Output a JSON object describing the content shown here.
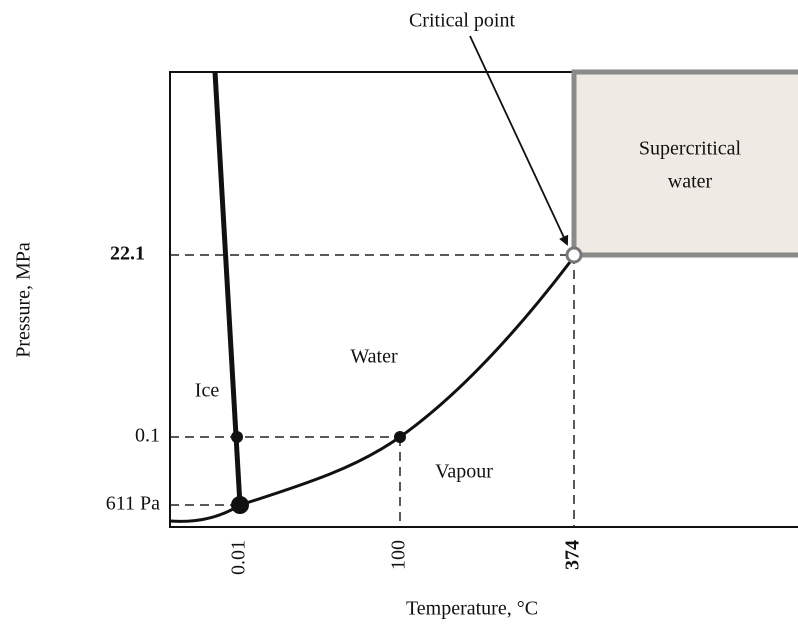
{
  "annotation": "Critical point",
  "regions": {
    "ice": "Ice",
    "water": "Water",
    "vapour": "Vapour",
    "supercritical": [
      "Supercritical",
      "water"
    ]
  },
  "axes": {
    "y_label": "Pressure, MPa",
    "x_label": "Temperature, °C",
    "y_ticks": [
      "22.1",
      "0.1",
      "611 Pa"
    ],
    "x_ticks": [
      "0.01",
      "100",
      "374"
    ]
  }
}
